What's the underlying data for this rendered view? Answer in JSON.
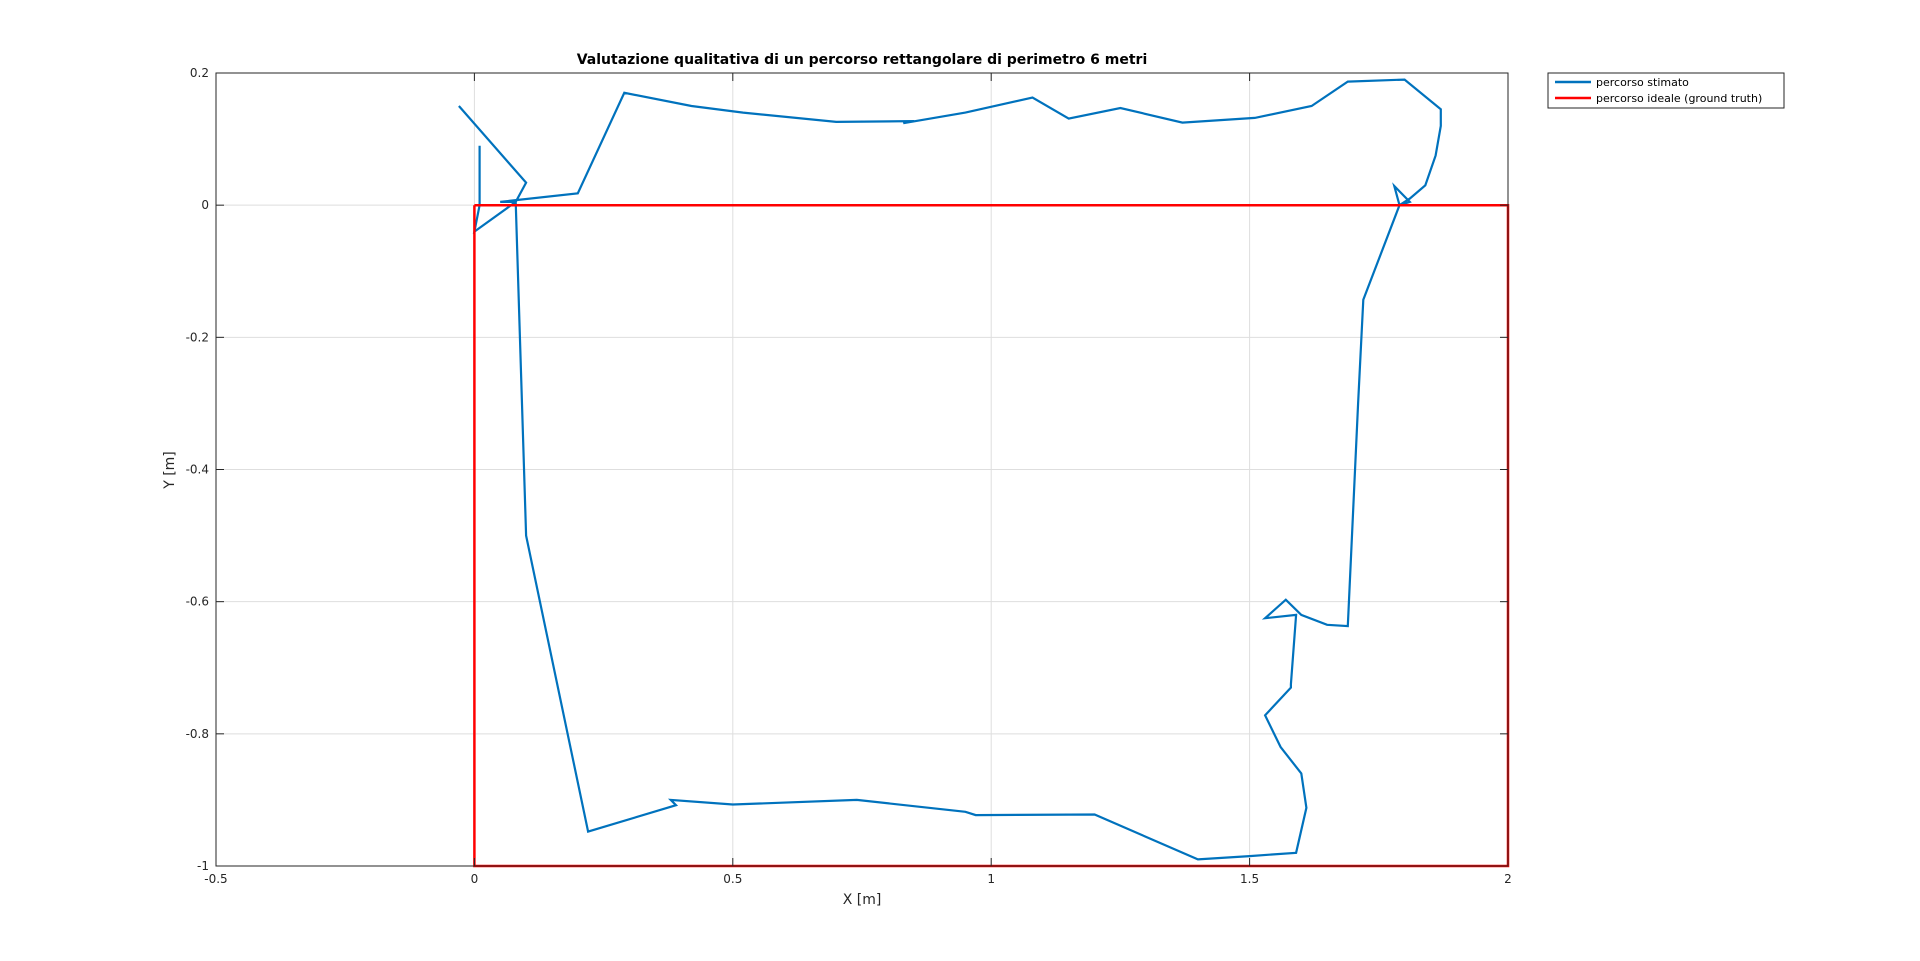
{
  "chart_data": {
    "type": "line",
    "title": "Valutazione qualitativa di un percorso rettangolare di perimetro 6 metri",
    "xlabel": "X [m]",
    "ylabel": "Y [m]",
    "xlim": [
      -0.5,
      2
    ],
    "ylim": [
      -1,
      0.2
    ],
    "xticks": [
      -0.5,
      0,
      0.5,
      1,
      1.5,
      2
    ],
    "xtick_labels": [
      "-0.5",
      "0",
      "0.5",
      "1",
      "1.5",
      "2"
    ],
    "yticks": [
      -1,
      -0.8,
      -0.6,
      -0.4,
      -0.2,
      0,
      0.2
    ],
    "ytick_labels": [
      "-1",
      "-0.8",
      "-0.6",
      "-0.4",
      "-0.2",
      "0",
      "0.2"
    ],
    "grid": true,
    "legend_position": "outside-top-right",
    "series": [
      {
        "name": "percorso stimato",
        "color": "#0072BD",
        "x": [
          -0.03,
          0.1,
          0.08,
          0.05,
          0.2,
          0.29,
          0.42,
          0.52,
          0.7,
          0.84,
          0.83,
          0.95,
          1.08,
          1.15,
          1.25,
          1.37,
          1.51,
          1.62,
          1.69,
          1.8,
          1.87,
          1.87,
          1.86,
          1.84,
          1.81,
          1.79,
          1.78,
          1.81,
          1.79,
          1.72,
          1.71,
          1.69,
          1.65,
          1.6,
          1.57,
          1.53,
          1.59,
          1.58,
          1.58,
          1.53,
          1.56,
          1.6,
          1.61,
          1.59,
          1.5,
          1.4,
          1.2,
          0.97,
          0.95,
          0.74,
          0.5,
          0.38,
          0.39,
          0.22,
          0.1,
          0.08,
          0.0,
          0.01,
          0.01
        ],
        "y": [
          0.15,
          0.034,
          0.005,
          0.005,
          0.018,
          0.17,
          0.15,
          0.14,
          0.126,
          0.127,
          0.124,
          0.14,
          0.163,
          0.131,
          0.147,
          0.125,
          0.132,
          0.15,
          0.187,
          0.19,
          0.145,
          0.12,
          0.075,
          0.03,
          0.01,
          0.0,
          0.029,
          0.005,
          0.0,
          -0.143,
          -0.3,
          -0.637,
          -0.635,
          -0.62,
          -0.597,
          -0.625,
          -0.62,
          -0.725,
          -0.73,
          -0.772,
          -0.82,
          -0.86,
          -0.912,
          -0.98,
          -0.985,
          -0.99,
          -0.922,
          -0.923,
          -0.918,
          -0.9,
          -0.907,
          -0.9,
          -0.908,
          -0.948,
          -0.5,
          0.005,
          -0.04,
          0.0,
          0.09
        ]
      },
      {
        "name": "percorso ideale (ground truth)",
        "color": "#FF0000",
        "x": [
          0,
          2,
          2,
          0,
          0
        ],
        "y": [
          0,
          0,
          -1,
          -1,
          0
        ]
      }
    ]
  }
}
